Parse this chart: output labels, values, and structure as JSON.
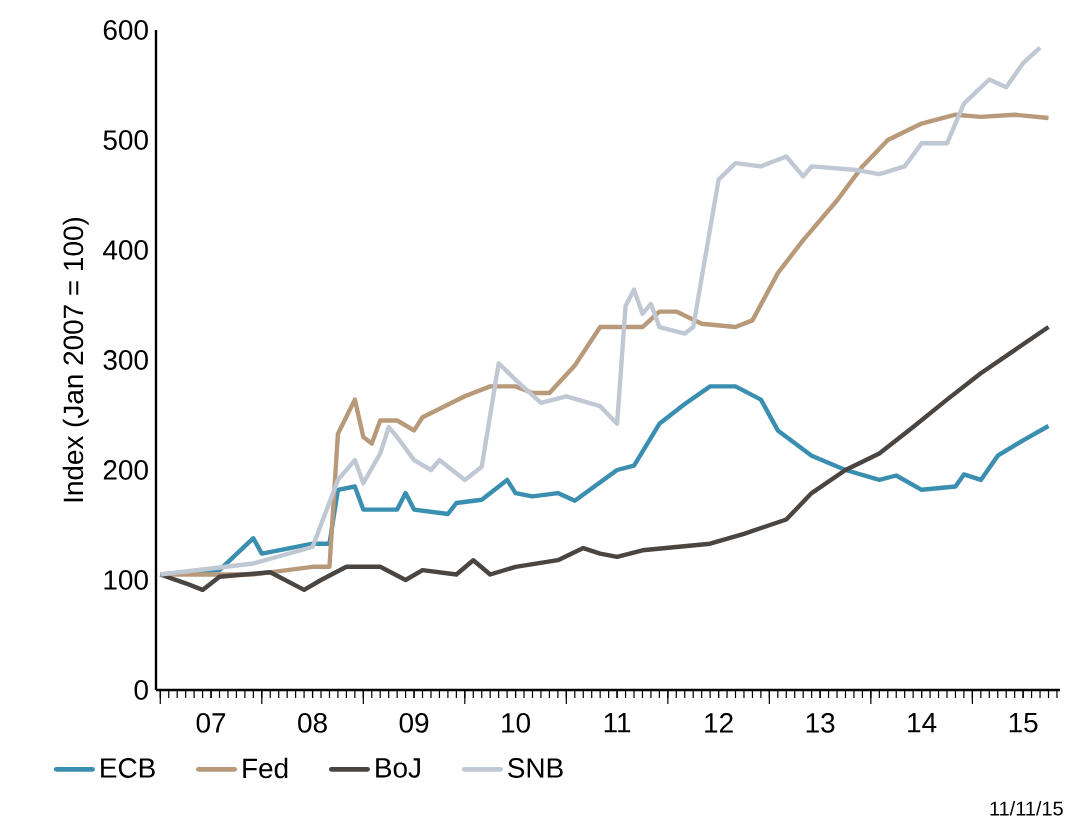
{
  "chart_data": {
    "type": "line",
    "ylabel": "Index (Jan 2007 = 100)",
    "xlim": [
      "2006-12-16",
      "2015-11-12"
    ],
    "ylim": [
      0,
      600
    ],
    "yticks": [
      0,
      100,
      200,
      300,
      400,
      500,
      600
    ],
    "xticks": [
      {
        "value": "2007-01",
        "label": null
      },
      {
        "value": "2007-07",
        "label": "07"
      },
      {
        "value": "2008-01",
        "label": null
      },
      {
        "value": "2008-07",
        "label": "08"
      },
      {
        "value": "2009-01",
        "label": null
      },
      {
        "value": "2009-07",
        "label": "09"
      },
      {
        "value": "2010-01",
        "label": null
      },
      {
        "value": "2010-07",
        "label": "10"
      },
      {
        "value": "2011-01",
        "label": null
      },
      {
        "value": "2011-07",
        "label": "11"
      },
      {
        "value": "2012-01",
        "label": null
      },
      {
        "value": "2012-07",
        "label": "12"
      },
      {
        "value": "2013-01",
        "label": null
      },
      {
        "value": "2013-07",
        "label": "13"
      },
      {
        "value": "2014-01",
        "label": null
      },
      {
        "value": "2014-07",
        "label": "14"
      },
      {
        "value": "2015-01",
        "label": null
      },
      {
        "value": "2015-07",
        "label": "15"
      }
    ],
    "grid": false,
    "legend": "bottom",
    "marker": "none",
    "line_style": "solid",
    "annotations": [
      "11/11/15"
    ],
    "series": [
      {
        "name": "ECB",
        "color": "#3a8fb0",
        "x": [
          "2007-01",
          "2007-08",
          "2007-12",
          "2008-01",
          "2008-03",
          "2008-07",
          "2008-09",
          "2008-10",
          "2008-12",
          "2009-01",
          "2009-05",
          "2009-06",
          "2009-07",
          "2009-11",
          "2009-12",
          "2010-03",
          "2010-06",
          "2010-07",
          "2010-09",
          "2010-12",
          "2011-02",
          "2011-07",
          "2011-09",
          "2011-12",
          "2012-03",
          "2012-06",
          "2012-09",
          "2012-12",
          "2013-02",
          "2013-06",
          "2013-10",
          "2014-02",
          "2014-04",
          "2014-07",
          "2014-11",
          "2014-12",
          "2015-02",
          "2015-04",
          "2015-07",
          "2015-10"
        ],
        "values": [
          105,
          109,
          138,
          124,
          127,
          133,
          133,
          182,
          185,
          164,
          164,
          179,
          164,
          160,
          170,
          173,
          191,
          179,
          176,
          179,
          172,
          200,
          204,
          242,
          260,
          276,
          276,
          264,
          236,
          213,
          200,
          191,
          195,
          182,
          185,
          196,
          191,
          213,
          227,
          240
        ]
      },
      {
        "name": "Fed",
        "color": "#b89a7a",
        "x": [
          "2007-01",
          "2007-12",
          "2008-07",
          "2008-09",
          "2008-10",
          "2008-12",
          "2009-01",
          "2009-02",
          "2009-03",
          "2009-05",
          "2009-07",
          "2009-08",
          "2010-01",
          "2010-04",
          "2010-07",
          "2010-09",
          "2010-11",
          "2011-02",
          "2011-05",
          "2011-10",
          "2011-12",
          "2012-02",
          "2012-05",
          "2012-09",
          "2012-11",
          "2013-02",
          "2013-05",
          "2013-09",
          "2013-12",
          "2014-03",
          "2014-07",
          "2014-11",
          "2015-02",
          "2015-06",
          "2015-10"
        ],
        "values": [
          105,
          105,
          112,
          112,
          233,
          264,
          230,
          224,
          245,
          245,
          236,
          248,
          267,
          276,
          276,
          270,
          270,
          295,
          330,
          330,
          344,
          344,
          333,
          330,
          336,
          379,
          409,
          445,
          476,
          500,
          515,
          523,
          521,
          523,
          520
        ]
      },
      {
        "name": "BoJ",
        "color": "#4a4540",
        "x": [
          "2007-01",
          "2007-04",
          "2007-06",
          "2007-08",
          "2008-02",
          "2008-06",
          "2008-08",
          "2008-11",
          "2009-03",
          "2009-06",
          "2009-08",
          "2009-12",
          "2010-02",
          "2010-04",
          "2010-07",
          "2010-12",
          "2011-03",
          "2011-05",
          "2011-07",
          "2011-10",
          "2012-02",
          "2012-06",
          "2012-10",
          "2013-03",
          "2013-06",
          "2013-10",
          "2014-02",
          "2014-06",
          "2014-10",
          "2015-02",
          "2015-06",
          "2015-10"
        ],
        "values": [
          105,
          97,
          91,
          103,
          107,
          91,
          100,
          112,
          112,
          100,
          109,
          105,
          118,
          105,
          112,
          118,
          129,
          124,
          121,
          127,
          130,
          133,
          142,
          155,
          179,
          200,
          215,
          239,
          264,
          288,
          309,
          330
        ]
      },
      {
        "name": "SNB",
        "color": "#c0c8d4",
        "x": [
          "2007-01",
          "2007-12",
          "2008-07",
          "2008-10",
          "2008-12",
          "2009-01",
          "2009-03",
          "2009-04",
          "2009-05",
          "2009-07",
          "2009-09",
          "2009-10",
          "2010-01",
          "2010-03",
          "2010-05",
          "2010-07",
          "2010-10",
          "2011-01",
          "2011-05",
          "2011-07",
          "2011-08",
          "2011-09",
          "2011-10",
          "2011-11",
          "2011-12",
          "2012-03",
          "2012-04",
          "2012-07",
          "2012-09",
          "2012-12",
          "2013-03",
          "2013-05",
          "2013-06",
          "2013-11",
          "2014-02",
          "2014-05",
          "2014-07",
          "2014-10",
          "2014-12",
          "2015-03",
          "2015-05",
          "2015-07",
          "2015-09"
        ],
        "values": [
          105,
          115,
          130,
          191,
          209,
          188,
          215,
          239,
          230,
          209,
          200,
          209,
          191,
          203,
          297,
          282,
          261,
          267,
          258,
          242,
          349,
          364,
          342,
          351,
          330,
          324,
          330,
          464,
          479,
          476,
          485,
          467,
          476,
          473,
          469,
          476,
          497,
          497,
          533,
          555,
          548,
          570,
          584
        ]
      }
    ]
  }
}
